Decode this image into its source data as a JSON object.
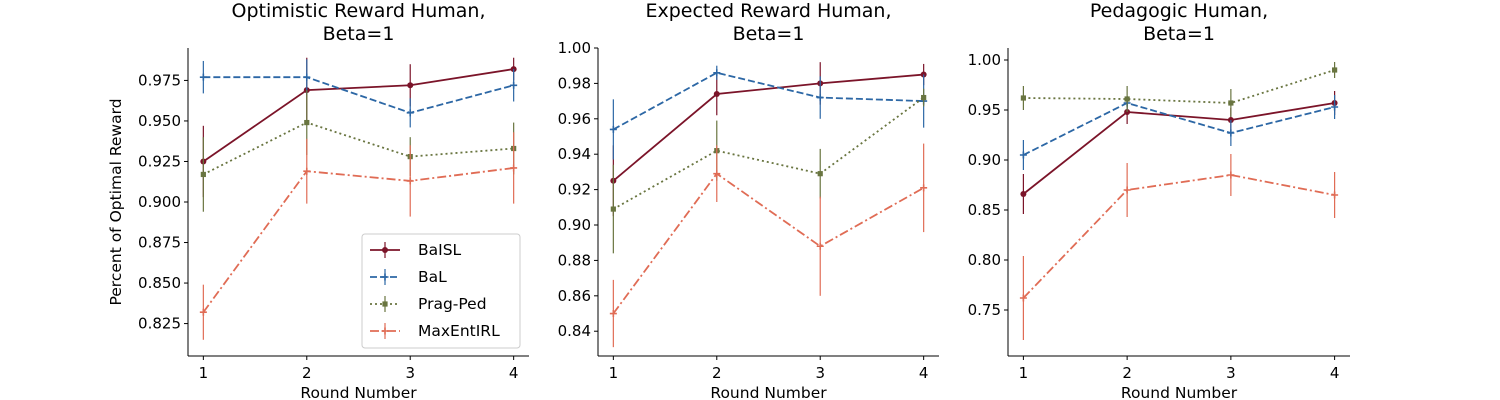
{
  "figure": {
    "legend": {
      "location": "lower-right of first panel",
      "entries": [
        "BaISL",
        "BaL",
        "Prag-Ped",
        "MaxEntIRL"
      ]
    },
    "series_styles": [
      {
        "name": "BaISL",
        "color": "#7b1429",
        "dash": "solid",
        "marker": "circle"
      },
      {
        "name": "BaL",
        "color": "#2c67a5",
        "dash": "dashed",
        "marker": "plus"
      },
      {
        "name": "Prag-Ped",
        "color": "#697540",
        "dash": "dotted",
        "marker": "square"
      },
      {
        "name": "MaxEntIRL",
        "color": "#e06c55",
        "dash": "dash-dot",
        "marker": "plus"
      }
    ]
  },
  "chart_data": [
    {
      "type": "line",
      "title": "Optimistic Reward Human,\nBeta=1",
      "title_lines": [
        "Optimistic Reward Human,",
        "Beta=1"
      ],
      "xlabel": "Round Number",
      "ylabel": "Percent of Optimal Reward",
      "x": [
        1,
        2,
        3,
        4
      ],
      "xticks": [
        "1",
        "2",
        "3",
        "4"
      ],
      "ylim": [
        0.805,
        0.995
      ],
      "yticks": [
        0.825,
        0.85,
        0.875,
        0.9,
        0.925,
        0.95,
        0.975
      ],
      "ytick_labels": [
        "0.825",
        "0.850",
        "0.875",
        "0.900",
        "0.925",
        "0.950",
        "0.975"
      ],
      "grid": false,
      "series": [
        {
          "name": "BaISL",
          "values": [
            0.925,
            0.969,
            0.972,
            0.982
          ],
          "err": [
            0.022,
            0.02,
            0.013,
            0.007
          ]
        },
        {
          "name": "BaL",
          "values": [
            0.977,
            0.977,
            0.955,
            0.972
          ],
          "err": [
            0.01,
            0.011,
            0.009,
            0.01
          ]
        },
        {
          "name": "Prag-Ped",
          "values": [
            0.917,
            0.949,
            0.928,
            0.933
          ],
          "err": [
            0.023,
            0.02,
            0.012,
            0.016
          ]
        },
        {
          "name": "MaxEntIRL",
          "values": [
            0.832,
            0.919,
            0.913,
            0.921
          ],
          "err": [
            0.017,
            0.02,
            0.022,
            0.022
          ]
        }
      ]
    },
    {
      "type": "line",
      "title": "Expected Reward Human,\nBeta=1",
      "title_lines": [
        "Expected Reward Human,",
        "Beta=1"
      ],
      "xlabel": "Round Number",
      "ylabel": "",
      "x": [
        1,
        2,
        3,
        4
      ],
      "xticks": [
        "1",
        "2",
        "3",
        "4"
      ],
      "ylim": [
        0.826,
        1.0
      ],
      "yticks": [
        0.84,
        0.86,
        0.88,
        0.9,
        0.92,
        0.94,
        0.96,
        0.98,
        1.0
      ],
      "ytick_labels": [
        "0.84",
        "0.86",
        "0.88",
        "0.90",
        "0.92",
        "0.94",
        "0.96",
        "0.98",
        "1.00"
      ],
      "grid": false,
      "series": [
        {
          "name": "BaISL",
          "values": [
            0.925,
            0.974,
            0.98,
            0.985
          ],
          "err": [
            0.02,
            0.012,
            0.012,
            0.006
          ]
        },
        {
          "name": "BaL",
          "values": [
            0.954,
            0.986,
            0.972,
            0.97
          ],
          "err": [
            0.017,
            0.004,
            0.012,
            0.015
          ]
        },
        {
          "name": "Prag-Ped",
          "values": [
            0.909,
            0.942,
            0.929,
            0.972
          ],
          "err": [
            0.025,
            0.017,
            0.014,
            0.005
          ]
        },
        {
          "name": "MaxEntIRL",
          "values": [
            0.85,
            0.929,
            0.888,
            0.921
          ],
          "err": [
            0.019,
            0.016,
            0.028,
            0.025
          ]
        }
      ]
    },
    {
      "type": "line",
      "title": "Pedagogic Human,\nBeta=1",
      "title_lines": [
        "Pedagogic Human,",
        "Beta=1"
      ],
      "xlabel": "Round Number",
      "ylabel": "",
      "x": [
        1,
        2,
        3,
        4
      ],
      "xticks": [
        "1",
        "2",
        "3",
        "4"
      ],
      "ylim": [
        0.704,
        1.012
      ],
      "yticks": [
        0.75,
        0.8,
        0.85,
        0.9,
        0.95,
        1.0
      ],
      "ytick_labels": [
        "0.75",
        "0.80",
        "0.85",
        "0.90",
        "0.95",
        "1.00"
      ],
      "grid": false,
      "series": [
        {
          "name": "BaISL",
          "values": [
            0.866,
            0.948,
            0.94,
            0.957
          ],
          "err": [
            0.02,
            0.012,
            0.012,
            0.012
          ]
        },
        {
          "name": "BaL",
          "values": [
            0.905,
            0.957,
            0.927,
            0.953
          ],
          "err": [
            0.015,
            0.007,
            0.013,
            0.012
          ]
        },
        {
          "name": "Prag-Ped",
          "values": [
            0.962,
            0.961,
            0.957,
            0.99
          ],
          "err": [
            0.012,
            0.013,
            0.014,
            0.008
          ]
        },
        {
          "name": "MaxEntIRL",
          "values": [
            0.762,
            0.87,
            0.885,
            0.865
          ],
          "err": [
            0.042,
            0.027,
            0.021,
            0.023
          ]
        }
      ]
    }
  ]
}
